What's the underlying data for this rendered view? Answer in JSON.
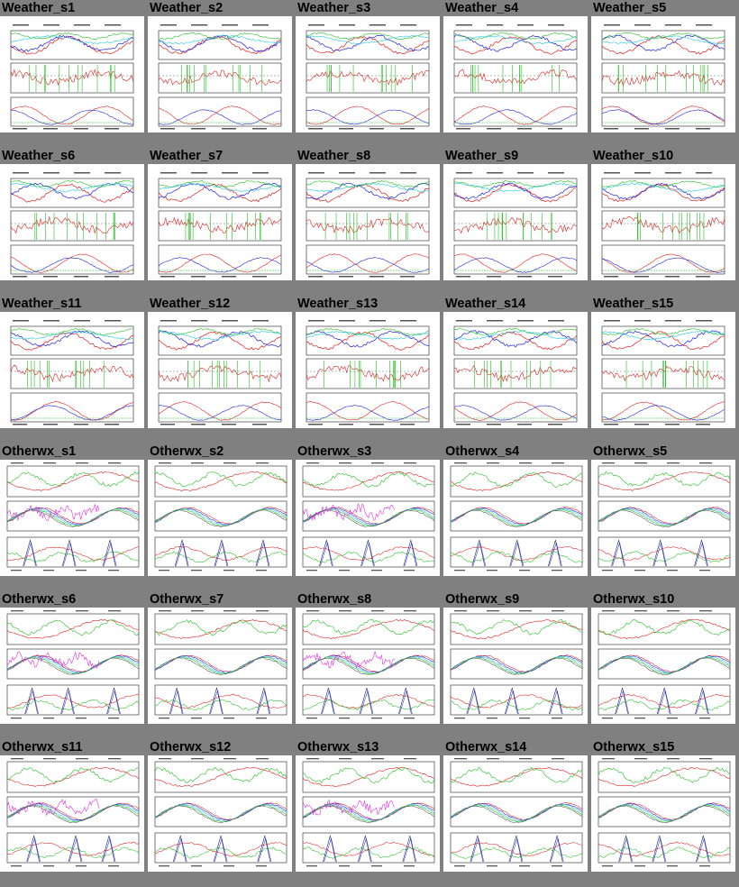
{
  "grid_items": [
    {
      "title": "Weather_s1",
      "kind": "weather"
    },
    {
      "title": "Weather_s2",
      "kind": "weather"
    },
    {
      "title": "Weather_s3",
      "kind": "weather"
    },
    {
      "title": "Weather_s4",
      "kind": "weather"
    },
    {
      "title": "Weather_s5",
      "kind": "weather"
    },
    {
      "title": "Weather_s6",
      "kind": "weather"
    },
    {
      "title": "Weather_s7",
      "kind": "weather"
    },
    {
      "title": "Weather_s8",
      "kind": "weather"
    },
    {
      "title": "Weather_s9",
      "kind": "weather"
    },
    {
      "title": "Weather_s10",
      "kind": "weather"
    },
    {
      "title": "Weather_s11",
      "kind": "weather"
    },
    {
      "title": "Weather_s12",
      "kind": "weather"
    },
    {
      "title": "Weather_s13",
      "kind": "weather"
    },
    {
      "title": "Weather_s14",
      "kind": "weather"
    },
    {
      "title": "Weather_s15",
      "kind": "weather"
    },
    {
      "title": "Otherwx_s1",
      "kind": "otherwx"
    },
    {
      "title": "Otherwx_s2",
      "kind": "otherwx"
    },
    {
      "title": "Otherwx_s3",
      "kind": "otherwx"
    },
    {
      "title": "Otherwx_s4",
      "kind": "otherwx"
    },
    {
      "title": "Otherwx_s5",
      "kind": "otherwx"
    },
    {
      "title": "Otherwx_s6",
      "kind": "otherwx"
    },
    {
      "title": "Otherwx_s7",
      "kind": "otherwx"
    },
    {
      "title": "Otherwx_s8",
      "kind": "otherwx"
    },
    {
      "title": "Otherwx_s9",
      "kind": "otherwx"
    },
    {
      "title": "Otherwx_s10",
      "kind": "otherwx"
    },
    {
      "title": "Otherwx_s11",
      "kind": "otherwx"
    },
    {
      "title": "Otherwx_s12",
      "kind": "otherwx"
    },
    {
      "title": "Otherwx_s13",
      "kind": "otherwx"
    },
    {
      "title": "Otherwx_s14",
      "kind": "otherwx"
    },
    {
      "title": "Otherwx_s15",
      "kind": "otherwx"
    }
  ],
  "colors": {
    "page_background": "#808080",
    "thumb_background": "#ffffff",
    "red": "#e02020",
    "green": "#20c020",
    "blue": "#2020e0",
    "cyan": "#20c8e0",
    "magenta": "#e020e0",
    "navy": "#203060"
  }
}
